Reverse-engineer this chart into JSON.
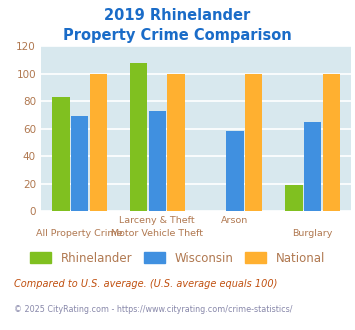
{
  "title_line1": "2019 Rhinelander",
  "title_line2": "Property Crime Comparison",
  "rhinelander": [
    83,
    108,
    0,
    19
  ],
  "wisconsin": [
    69,
    73,
    58,
    65
  ],
  "national": [
    100,
    100,
    100,
    100
  ],
  "bar_colors": {
    "rhinelander": "#80c020",
    "wisconsin": "#4090e0",
    "national": "#ffb030"
  },
  "ylim": [
    0,
    120
  ],
  "yticks": [
    0,
    20,
    40,
    60,
    80,
    100,
    120
  ],
  "title_color": "#1a6cc8",
  "axis_bg_color": "#d8e8ee",
  "fig_bg_color": "#ffffff",
  "tick_label_color": "#b07850",
  "grid_color": "#ffffff",
  "legend_labels": [
    "Rhinelander",
    "Wisconsin",
    "National"
  ],
  "top_xlabels": [
    "",
    "Larceny & Theft",
    "Arson",
    ""
  ],
  "bot_xlabels": [
    "All Property Crime",
    "Motor Vehicle Theft",
    "",
    "Burglary"
  ],
  "footnote1": "Compared to U.S. average. (U.S. average equals 100)",
  "footnote2": "© 2025 CityRating.com - https://www.cityrating.com/crime-statistics/",
  "footnote1_color": "#c05010",
  "footnote2_color": "#8888aa"
}
